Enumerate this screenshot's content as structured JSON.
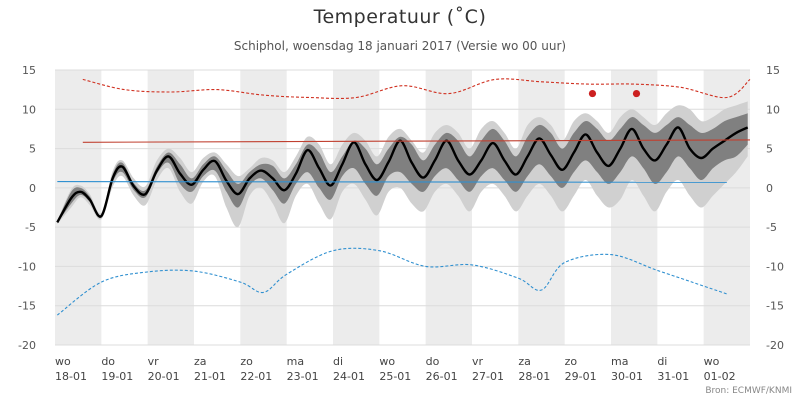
{
  "chart_data": {
    "type": "area",
    "title": "Temperatuur (˚C)",
    "subtitle": "Schiphol, woensdag 18 januari 2017 (Versie wo 00 uur)",
    "credits": "Bron: ECMWF/KNMI",
    "ylim": [
      -20,
      15
    ],
    "yticks": [
      -20,
      -15,
      -10,
      -5,
      0,
      5,
      10,
      15
    ],
    "xlim": [
      0,
      15
    ],
    "grid": true,
    "x_tick_labels": [
      {
        "day": "wo",
        "date": "18-01"
      },
      {
        "day": "do",
        "date": "19-01"
      },
      {
        "day": "vr",
        "date": "20-01"
      },
      {
        "day": "za",
        "date": "21-01"
      },
      {
        "day": "zo",
        "date": "22-01"
      },
      {
        "day": "ma",
        "date": "23-01"
      },
      {
        "day": "di",
        "date": "24-01"
      },
      {
        "day": "wo",
        "date": "25-01"
      },
      {
        "day": "do",
        "date": "26-01"
      },
      {
        "day": "vr",
        "date": "27-01"
      },
      {
        "day": "za",
        "date": "28-01"
      },
      {
        "day": "zo",
        "date": "29-01"
      },
      {
        "day": "ma",
        "date": "30-01"
      },
      {
        "day": "di",
        "date": "31-01"
      },
      {
        "day": "wo",
        "date": "01-02"
      }
    ],
    "series": [
      {
        "role": "ensemble-outer-band",
        "color": "#d0d0d0",
        "x": [
          0.05,
          0.35,
          0.55,
          0.75,
          1.0,
          1.25,
          1.45,
          1.7,
          1.95,
          2.2,
          2.45,
          2.7,
          2.95,
          3.2,
          3.45,
          3.7,
          3.95,
          4.2,
          4.45,
          4.7,
          4.95,
          5.2,
          5.45,
          5.7,
          5.95,
          6.2,
          6.45,
          6.7,
          6.95,
          7.2,
          7.45,
          7.7,
          7.95,
          8.2,
          8.45,
          8.7,
          8.95,
          9.2,
          9.45,
          9.7,
          9.95,
          10.2,
          10.45,
          10.7,
          10.95,
          11.2,
          11.45,
          11.7,
          11.95,
          12.2,
          12.45,
          12.7,
          12.95,
          13.2,
          13.45,
          13.7,
          13.95,
          14.2,
          14.45,
          14.7,
          14.95
        ],
        "low": [
          -4.6,
          -2.5,
          -1.2,
          -2.2,
          -4.0,
          0.2,
          1.5,
          -1.0,
          -2.2,
          1.0,
          2.5,
          -0.5,
          -2.0,
          0.8,
          1.5,
          -2.5,
          -5.0,
          -1.0,
          0.0,
          -2.0,
          -4.5,
          -1.0,
          0.5,
          -2.0,
          -4.0,
          -0.5,
          0.5,
          -1.5,
          -3.5,
          -0.5,
          0.0,
          -2.0,
          -3.0,
          -0.5,
          0.5,
          -1.0,
          -3.0,
          -0.5,
          0.5,
          -1.0,
          -3.0,
          -1.0,
          0.5,
          -1.0,
          -3.0,
          -1.0,
          1.0,
          -1.0,
          -2.5,
          -1.5,
          1.0,
          -1.0,
          -3.0,
          -0.5,
          1.0,
          -1.0,
          -2.5,
          -1.0,
          0.5,
          2.0,
          4.0
        ],
        "high": [
          -4.2,
          -0.2,
          0.3,
          -0.8,
          -3.2,
          2.2,
          3.5,
          1.2,
          0.2,
          3.5,
          5.0,
          3.8,
          2.0,
          3.8,
          4.5,
          3.0,
          1.5,
          2.5,
          3.8,
          3.5,
          2.0,
          4.0,
          6.5,
          5.5,
          3.0,
          5.5,
          7.0,
          6.0,
          4.0,
          6.5,
          7.5,
          6.0,
          4.5,
          7.0,
          8.0,
          7.0,
          5.0,
          7.5,
          8.5,
          7.0,
          5.0,
          8.0,
          9.0,
          8.0,
          6.0,
          8.5,
          9.5,
          8.5,
          7.0,
          9.0,
          10.0,
          9.0,
          8.0,
          9.5,
          10.5,
          10.0,
          8.5,
          9.0,
          10.0,
          10.5,
          11.0
        ]
      },
      {
        "role": "ensemble-inner-band",
        "color": "#808080",
        "x": [
          0.05,
          0.35,
          0.55,
          0.75,
          1.0,
          1.25,
          1.45,
          1.7,
          1.95,
          2.2,
          2.45,
          2.7,
          2.95,
          3.2,
          3.45,
          3.7,
          3.95,
          4.2,
          4.45,
          4.7,
          4.95,
          5.2,
          5.45,
          5.7,
          5.95,
          6.2,
          6.45,
          6.7,
          6.95,
          7.2,
          7.45,
          7.7,
          7.95,
          8.2,
          8.45,
          8.7,
          8.95,
          9.2,
          9.45,
          9.7,
          9.95,
          10.2,
          10.45,
          10.7,
          10.95,
          11.2,
          11.45,
          11.7,
          11.95,
          12.2,
          12.45,
          12.7,
          12.95,
          13.2,
          13.45,
          13.7,
          13.95,
          14.2,
          14.45,
          14.7,
          14.95
        ],
        "low": [
          -4.5,
          -2.0,
          -0.9,
          -1.8,
          -3.8,
          0.8,
          2.0,
          -0.3,
          -1.2,
          1.8,
          3.2,
          0.5,
          -0.5,
          1.5,
          2.2,
          -0.5,
          -2.5,
          0.3,
          1.2,
          -0.3,
          -2.0,
          0.5,
          2.0,
          0.0,
          -1.5,
          1.5,
          2.5,
          0.5,
          -1.0,
          1.5,
          2.0,
          0.5,
          -0.5,
          1.5,
          2.5,
          1.0,
          -0.5,
          1.5,
          2.5,
          1.0,
          -0.5,
          1.5,
          3.0,
          1.5,
          0.0,
          2.0,
          3.5,
          2.0,
          0.5,
          2.0,
          4.0,
          2.5,
          0.5,
          2.0,
          4.0,
          2.5,
          1.0,
          2.5,
          3.5,
          4.0,
          5.5
        ],
        "high": [
          -4.3,
          -0.5,
          0.0,
          -1.1,
          -3.4,
          1.8,
          3.2,
          0.6,
          -0.3,
          2.7,
          4.5,
          3.0,
          1.2,
          3.0,
          4.0,
          2.2,
          0.5,
          2.0,
          3.0,
          2.8,
          1.2,
          3.0,
          5.5,
          4.5,
          2.0,
          4.0,
          6.0,
          5.0,
          3.0,
          5.0,
          6.5,
          5.5,
          3.5,
          5.5,
          7.0,
          6.0,
          4.0,
          6.0,
          7.5,
          6.0,
          4.0,
          6.5,
          8.0,
          7.0,
          5.0,
          7.0,
          8.5,
          7.5,
          6.0,
          7.5,
          9.0,
          8.0,
          7.0,
          8.0,
          9.0,
          8.0,
          7.0,
          7.5,
          8.5,
          9.0,
          9.5
        ]
      },
      {
        "role": "ensemble-mean",
        "color": "#000000",
        "x": [
          0.05,
          0.35,
          0.55,
          0.75,
          1.0,
          1.25,
          1.45,
          1.7,
          1.95,
          2.2,
          2.45,
          2.7,
          2.95,
          3.2,
          3.45,
          3.7,
          3.95,
          4.2,
          4.45,
          4.7,
          4.95,
          5.2,
          5.45,
          5.7,
          5.95,
          6.2,
          6.45,
          6.7,
          6.95,
          7.2,
          7.45,
          7.7,
          7.95,
          8.2,
          8.45,
          8.7,
          8.95,
          9.2,
          9.45,
          9.7,
          9.95,
          10.2,
          10.45,
          10.7,
          10.95,
          11.2,
          11.45,
          11.7,
          11.95,
          12.2,
          12.45,
          12.7,
          12.95,
          13.2,
          13.45,
          13.7,
          13.95,
          14.2,
          14.45,
          14.7,
          14.95
        ],
        "values": [
          -4.4,
          -1.3,
          -0.5,
          -1.5,
          -3.6,
          1.3,
          2.7,
          0.2,
          -0.8,
          2.2,
          4.0,
          1.8,
          0.4,
          2.3,
          3.4,
          0.9,
          -0.8,
          1.2,
          2.2,
          1.2,
          -0.3,
          1.8,
          4.8,
          2.5,
          0.3,
          3.0,
          5.8,
          3.0,
          1.0,
          3.3,
          6.0,
          3.2,
          1.3,
          3.5,
          6.0,
          3.5,
          1.7,
          3.5,
          5.7,
          3.5,
          1.7,
          4.0,
          6.3,
          4.2,
          2.3,
          4.5,
          6.8,
          4.5,
          2.8,
          5.0,
          7.5,
          5.0,
          3.5,
          5.5,
          7.7,
          5.0,
          3.8,
          5.0,
          6.0,
          7.0,
          7.7
        ]
      },
      {
        "role": "climate-max-record",
        "color": "#d03020",
        "dash": true,
        "x": [
          0.6,
          1.5,
          2.5,
          3.5,
          4.5,
          5.5,
          6.5,
          7.5,
          8.5,
          9.5,
          10.5,
          11.5,
          12.5,
          13.5,
          14.5,
          15.0
        ],
        "values": [
          13.8,
          12.5,
          12.2,
          12.5,
          11.8,
          11.5,
          11.5,
          13.0,
          12.0,
          13.8,
          13.5,
          13.2,
          13.2,
          12.8,
          11.5,
          13.8
        ]
      },
      {
        "role": "climate-normal-max",
        "color": "#c04030",
        "x": [
          0.6,
          15.0
        ],
        "values": [
          5.8,
          6.1
        ]
      },
      {
        "role": "climate-normal-min",
        "color": "#3090d0",
        "x": [
          0.05,
          14.5
        ],
        "values": [
          0.8,
          0.7
        ]
      },
      {
        "role": "climate-min-record",
        "color": "#3090d0",
        "dash": true,
        "x": [
          0.05,
          1.0,
          2.0,
          3.0,
          4.0,
          4.5,
          5.0,
          6.0,
          7.0,
          8.0,
          9.0,
          10.0,
          10.5,
          11.0,
          12.0,
          13.0,
          14.0,
          14.5
        ],
        "values": [
          -16.2,
          -12.0,
          -10.7,
          -10.6,
          -12.0,
          -13.3,
          -11.0,
          -8.0,
          -8.0,
          -10.0,
          -9.8,
          -11.5,
          -13.0,
          -9.5,
          -8.5,
          -10.5,
          -12.5,
          -13.5
        ]
      },
      {
        "role": "record-markers",
        "color": "#cc2020",
        "x": [
          11.6,
          12.55
        ],
        "values": [
          12.0,
          12.0
        ]
      }
    ]
  }
}
